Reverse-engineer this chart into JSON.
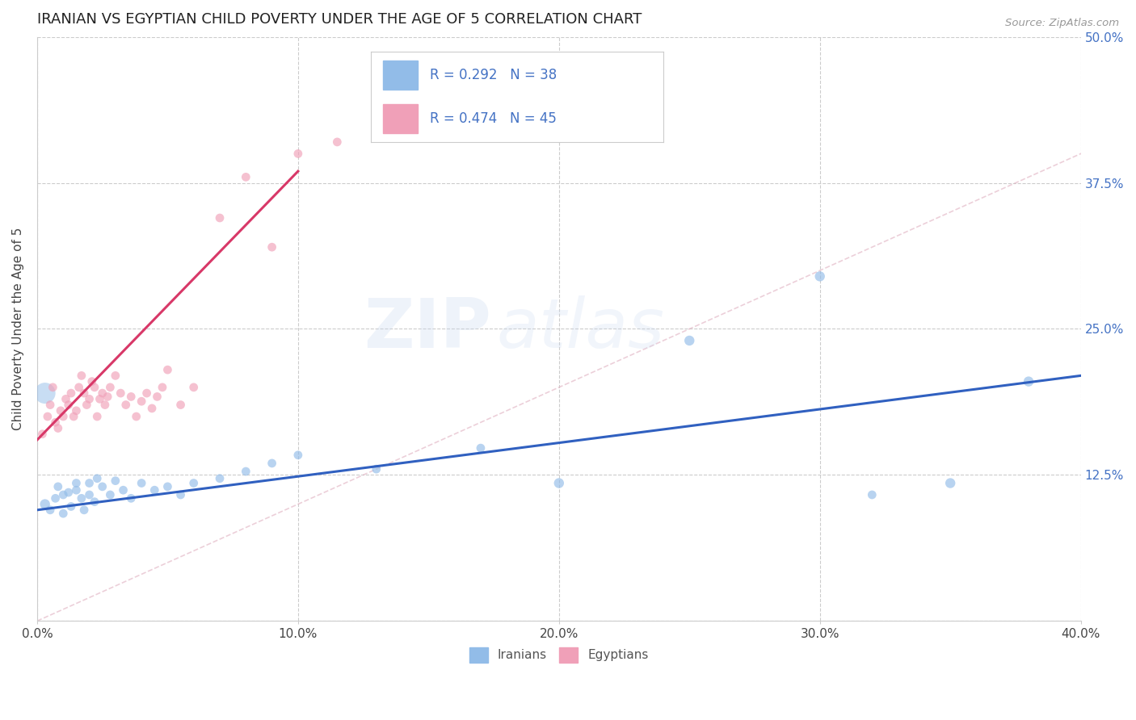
{
  "title": "IRANIAN VS EGYPTIAN CHILD POVERTY UNDER THE AGE OF 5 CORRELATION CHART",
  "source": "Source: ZipAtlas.com",
  "ylabel": "Child Poverty Under the Age of 5",
  "xlim": [
    0.0,
    0.4
  ],
  "ylim": [
    0.0,
    0.5
  ],
  "xticks": [
    0.0,
    0.1,
    0.2,
    0.3,
    0.4
  ],
  "xticklabels": [
    "0.0%",
    "10.0%",
    "20.0%",
    "30.0%",
    "40.0%"
  ],
  "yticks": [
    0.0,
    0.125,
    0.25,
    0.375,
    0.5
  ],
  "yticklabels": [
    "",
    "12.5%",
    "25.0%",
    "37.5%",
    "50.0%"
  ],
  "legend_r1": "R = 0.292",
  "legend_n1": "N = 38",
  "legend_r2": "R = 0.474",
  "legend_n2": "N = 45",
  "iranians_label": "Iranians",
  "egyptians_label": "Egyptians",
  "color_iranian": "#92bce8",
  "color_egyptian": "#f0a0b8",
  "color_trend_iranian": "#3060c0",
  "color_trend_egyptian": "#d83868",
  "color_diag": "#d0c0d8",
  "watermark_zip": "ZIP",
  "watermark_atlas": "atlas",
  "iranians_x": [
    0.003,
    0.005,
    0.007,
    0.008,
    0.01,
    0.01,
    0.012,
    0.013,
    0.015,
    0.015,
    0.017,
    0.018,
    0.02,
    0.02,
    0.022,
    0.023,
    0.025,
    0.028,
    0.03,
    0.033,
    0.036,
    0.04,
    0.045,
    0.05,
    0.055,
    0.06,
    0.07,
    0.08,
    0.09,
    0.1,
    0.13,
    0.17,
    0.2,
    0.25,
    0.3,
    0.32,
    0.35,
    0.38
  ],
  "iranians_y": [
    0.1,
    0.095,
    0.105,
    0.115,
    0.108,
    0.092,
    0.11,
    0.098,
    0.112,
    0.118,
    0.105,
    0.095,
    0.108,
    0.118,
    0.102,
    0.122,
    0.115,
    0.108,
    0.12,
    0.112,
    0.105,
    0.118,
    0.112,
    0.115,
    0.108,
    0.118,
    0.122,
    0.128,
    0.135,
    0.142,
    0.13,
    0.148,
    0.118,
    0.24,
    0.295,
    0.108,
    0.118,
    0.205
  ],
  "iranians_s": [
    80,
    60,
    60,
    60,
    60,
    60,
    60,
    60,
    60,
    60,
    60,
    60,
    60,
    60,
    60,
    60,
    60,
    60,
    60,
    60,
    60,
    60,
    60,
    60,
    60,
    60,
    60,
    60,
    60,
    60,
    60,
    60,
    80,
    80,
    80,
    60,
    80,
    80
  ],
  "iranians_large": [
    0,
    3
  ],
  "egyptians_x": [
    0.002,
    0.004,
    0.005,
    0.006,
    0.007,
    0.008,
    0.009,
    0.01,
    0.011,
    0.012,
    0.013,
    0.014,
    0.015,
    0.016,
    0.017,
    0.018,
    0.019,
    0.02,
    0.021,
    0.022,
    0.023,
    0.024,
    0.025,
    0.026,
    0.027,
    0.028,
    0.03,
    0.032,
    0.034,
    0.036,
    0.038,
    0.04,
    0.042,
    0.044,
    0.046,
    0.048,
    0.05,
    0.055,
    0.06,
    0.07,
    0.08,
    0.09,
    0.1,
    0.115,
    0.13
  ],
  "egyptians_y": [
    0.16,
    0.175,
    0.185,
    0.2,
    0.17,
    0.165,
    0.18,
    0.175,
    0.19,
    0.185,
    0.195,
    0.175,
    0.18,
    0.2,
    0.21,
    0.195,
    0.185,
    0.19,
    0.205,
    0.2,
    0.175,
    0.19,
    0.195,
    0.185,
    0.192,
    0.2,
    0.21,
    0.195,
    0.185,
    0.192,
    0.175,
    0.188,
    0.195,
    0.182,
    0.192,
    0.2,
    0.215,
    0.185,
    0.2,
    0.345,
    0.38,
    0.32,
    0.4,
    0.41,
    0.44
  ],
  "egyptians_s": [
    60,
    60,
    60,
    60,
    60,
    60,
    60,
    60,
    60,
    60,
    60,
    60,
    60,
    60,
    60,
    60,
    60,
    60,
    60,
    60,
    60,
    60,
    60,
    60,
    60,
    60,
    60,
    60,
    60,
    60,
    60,
    60,
    60,
    60,
    60,
    60,
    60,
    60,
    60,
    60,
    60,
    60,
    60,
    60,
    60
  ],
  "trend_iran_x0": 0.0,
  "trend_iran_y0": 0.095,
  "trend_iran_x1": 0.4,
  "trend_iran_y1": 0.21,
  "trend_egypt_x0": 0.0,
  "trend_egypt_y0": 0.155,
  "trend_egypt_x1": 0.1,
  "trend_egypt_y1": 0.385
}
